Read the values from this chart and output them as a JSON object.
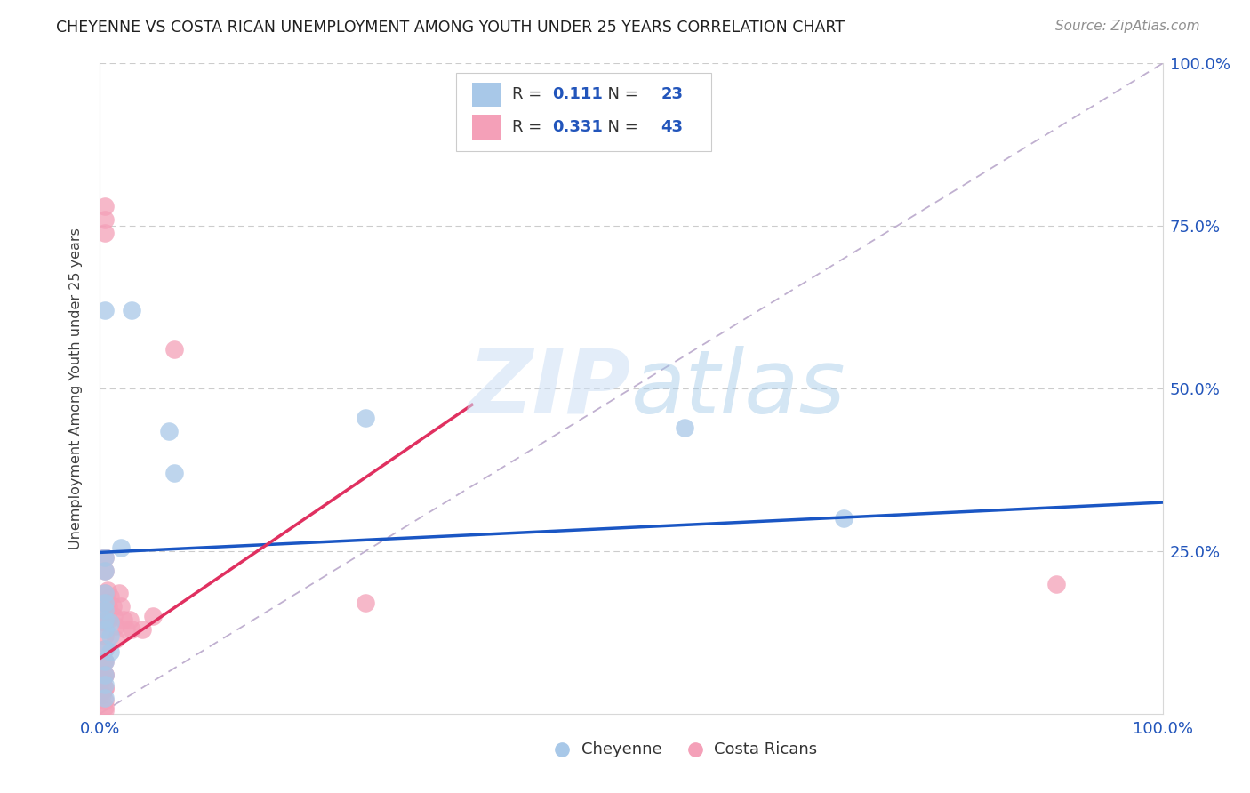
{
  "title": "CHEYENNE VS COSTA RICAN UNEMPLOYMENT AMONG YOUTH UNDER 25 YEARS CORRELATION CHART",
  "source": "Source: ZipAtlas.com",
  "ylabel": "Unemployment Among Youth under 25 years",
  "xlim": [
    0.0,
    1.0
  ],
  "ylim": [
    0.0,
    1.0
  ],
  "cheyenne_color": "#a8c8e8",
  "costa_color": "#f4a0b8",
  "cheyenne_R": 0.111,
  "cheyenne_N": 23,
  "costa_R": 0.331,
  "costa_N": 43,
  "cheyenne_line_color": "#1a56c4",
  "costa_line_color": "#e03060",
  "diagonal_color": "#c0b0d0",
  "watermark_zip": "ZIP",
  "watermark_atlas": "atlas",
  "legend_label1": "Cheyenne",
  "legend_label2": "Costa Ricans",
  "chey_x": [
    0.02,
    0.005,
    0.005,
    0.005,
    0.005,
    0.005,
    0.005,
    0.005,
    0.01,
    0.01,
    0.01,
    0.03,
    0.25,
    0.065,
    0.07,
    0.55,
    0.7,
    0.005,
    0.005,
    0.005,
    0.005,
    0.005,
    0.005
  ],
  "chey_y": [
    0.255,
    0.24,
    0.22,
    0.185,
    0.16,
    0.13,
    0.1,
    0.08,
    0.14,
    0.12,
    0.095,
    0.62,
    0.455,
    0.435,
    0.37,
    0.44,
    0.3,
    0.17,
    0.145,
    0.06,
    0.045,
    0.025,
    0.62
  ],
  "cos_x": [
    0.002,
    0.003,
    0.003,
    0.004,
    0.004,
    0.005,
    0.005,
    0.005,
    0.005,
    0.005,
    0.005,
    0.005,
    0.005,
    0.005,
    0.005,
    0.005,
    0.005,
    0.005,
    0.007,
    0.007,
    0.008,
    0.008,
    0.01,
    0.012,
    0.013,
    0.015,
    0.015,
    0.018,
    0.02,
    0.022,
    0.025,
    0.028,
    0.03,
    0.04,
    0.05,
    0.07,
    0.25,
    0.9,
    0.005,
    0.005,
    0.005,
    0.005,
    0.005
  ],
  "cos_y": [
    0.03,
    0.055,
    0.035,
    0.08,
    0.06,
    0.24,
    0.22,
    0.185,
    0.16,
    0.14,
    0.12,
    0.1,
    0.08,
    0.06,
    0.04,
    0.02,
    0.01,
    0.005,
    0.19,
    0.17,
    0.165,
    0.145,
    0.18,
    0.165,
    0.15,
    0.135,
    0.115,
    0.185,
    0.165,
    0.145,
    0.13,
    0.145,
    0.13,
    0.13,
    0.15,
    0.56,
    0.17,
    0.2,
    0.78,
    0.76,
    0.74,
    0.04,
    0.06
  ],
  "chey_line_x0": 0.0,
  "chey_line_x1": 1.0,
  "chey_line_y0": 0.248,
  "chey_line_y1": 0.325,
  "cos_line_x0": 0.0,
  "cos_line_x1": 0.35,
  "cos_line_y0": 0.085,
  "cos_line_y1": 0.475
}
